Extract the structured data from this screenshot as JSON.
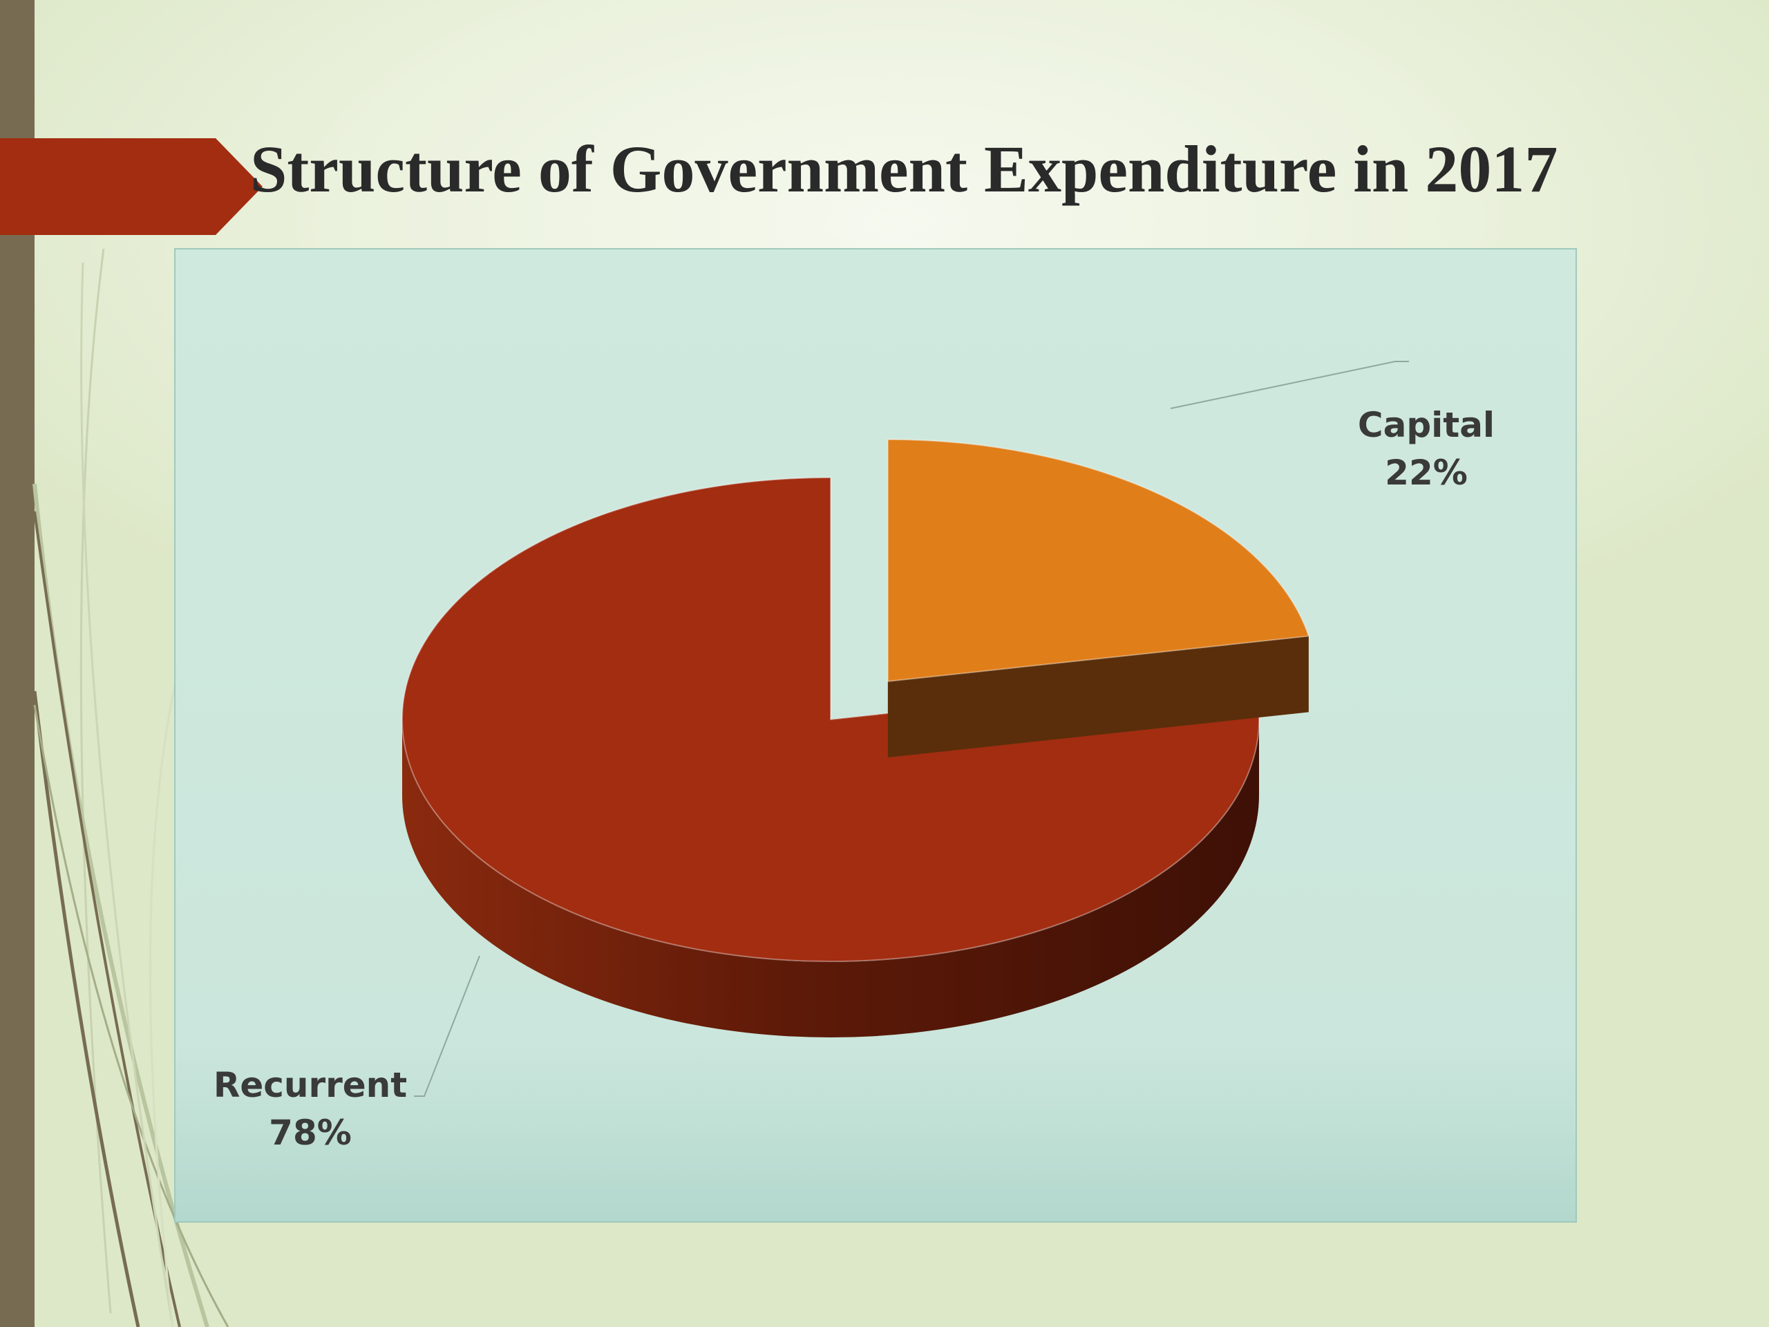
{
  "slide": {
    "title": "Structure of Government Expenditure in 2017"
  },
  "colors": {
    "accent_bar": "#776c52",
    "title_tab": "#a22d11",
    "chart_background": "#cde7dd"
  },
  "chart_data": {
    "type": "pie",
    "style": "3d-exploded",
    "title": "",
    "series": [
      {
        "values": [
          {
            "label": "Capital",
            "value": 22,
            "display": "22%",
            "color": "#e07e1a",
            "side_color": "#5a2e0a",
            "exploded": true
          },
          {
            "label": "Recurrent",
            "value": 78,
            "display": "78%",
            "color": "#a22d11",
            "side_color": "#6e1f0c",
            "exploded": false
          }
        ]
      }
    ],
    "legend": "none",
    "data_labels": "outside-with-leader-lines"
  }
}
